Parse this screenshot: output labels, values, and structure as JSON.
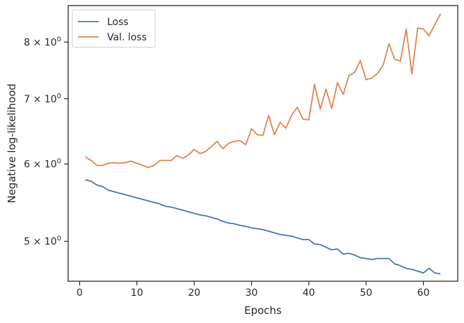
{
  "chart_data": {
    "type": "line",
    "xlabel": "Epochs",
    "ylabel": "Negative log-likelihood",
    "xlim": [
      -2,
      66
    ],
    "ylim": [
      4.55,
      8.72
    ],
    "yscale": "log",
    "grid": false,
    "legend_position": "top-left",
    "xticks": [
      0,
      10,
      20,
      30,
      40,
      50,
      60
    ],
    "xtick_labels": [
      "0",
      "10",
      "20",
      "30",
      "40",
      "50",
      "60"
    ],
    "yticks": [
      {
        "value": 5,
        "base": "5 × 10",
        "exp": "0"
      },
      {
        "value": 6,
        "base": "6 × 10",
        "exp": "0"
      },
      {
        "value": 7,
        "base": "7 × 10",
        "exp": "0"
      },
      {
        "value": 8,
        "base": "8 × 10",
        "exp": "0"
      }
    ],
    "x": [
      1,
      2,
      3,
      4,
      5,
      6,
      7,
      8,
      9,
      10,
      11,
      12,
      13,
      14,
      15,
      16,
      17,
      18,
      19,
      20,
      21,
      22,
      23,
      24,
      25,
      26,
      27,
      28,
      29,
      30,
      31,
      32,
      33,
      34,
      35,
      36,
      37,
      38,
      39,
      40,
      41,
      42,
      43,
      44,
      45,
      46,
      47,
      48,
      49,
      50,
      51,
      52,
      53,
      54,
      55,
      56,
      57,
      58,
      59,
      60,
      61,
      62,
      63
    ],
    "series": [
      {
        "name": "Loss",
        "color": "#4c72b0",
        "values": [
          5.78,
          5.76,
          5.71,
          5.69,
          5.64,
          5.62,
          5.6,
          5.58,
          5.56,
          5.54,
          5.52,
          5.5,
          5.48,
          5.46,
          5.43,
          5.42,
          5.4,
          5.38,
          5.36,
          5.34,
          5.32,
          5.31,
          5.29,
          5.27,
          5.24,
          5.22,
          5.21,
          5.19,
          5.18,
          5.16,
          5.15,
          5.14,
          5.12,
          5.1,
          5.08,
          5.07,
          5.06,
          5.04,
          5.02,
          5.02,
          4.97,
          4.96,
          4.93,
          4.9,
          4.91,
          4.85,
          4.86,
          4.84,
          4.81,
          4.8,
          4.79,
          4.8,
          4.8,
          4.8,
          4.74,
          4.72,
          4.69,
          4.68,
          4.66,
          4.64,
          4.69,
          4.64,
          4.63
        ]
      },
      {
        "name": "Val. loss",
        "color": "#dd8452",
        "values": [
          6.1,
          6.05,
          5.98,
          5.98,
          6.01,
          6.02,
          6.01,
          6.02,
          6.04,
          6.01,
          5.98,
          5.95,
          5.98,
          6.05,
          6.05,
          6.05,
          6.12,
          6.08,
          6.13,
          6.21,
          6.15,
          6.18,
          6.25,
          6.33,
          6.22,
          6.3,
          6.33,
          6.34,
          6.28,
          6.52,
          6.43,
          6.42,
          6.73,
          6.43,
          6.62,
          6.53,
          6.73,
          6.86,
          6.67,
          6.66,
          7.24,
          6.83,
          7.16,
          6.84,
          7.27,
          7.07,
          7.39,
          7.45,
          7.66,
          7.32,
          7.35,
          7.43,
          7.58,
          7.97,
          7.68,
          7.65,
          8.25,
          7.42,
          8.27,
          8.25,
          8.12,
          8.34,
          8.55
        ]
      }
    ]
  }
}
